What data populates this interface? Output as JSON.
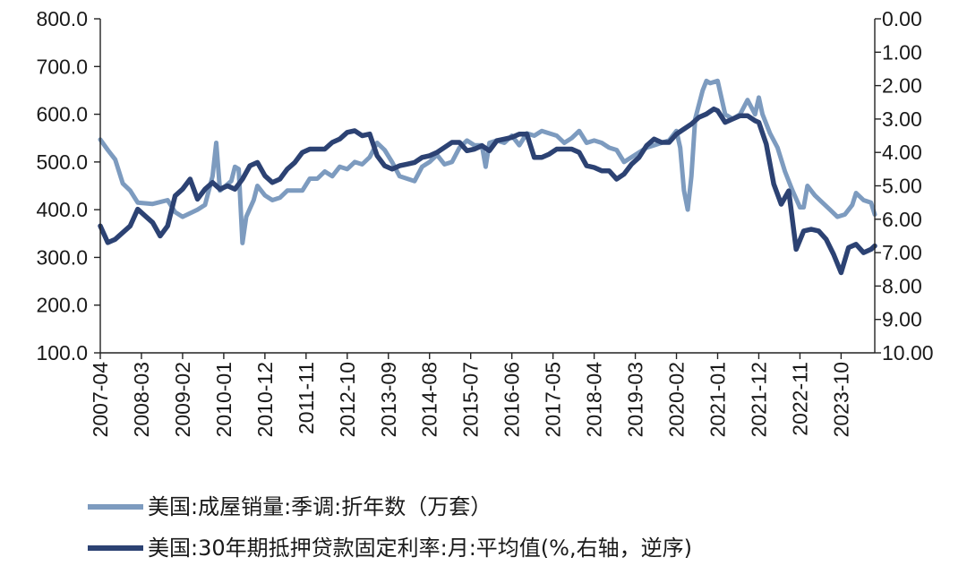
{
  "chart_data": {
    "type": "line",
    "title": "",
    "xlabel": "",
    "y_left": {
      "ylim": [
        100,
        800
      ],
      "ticks": [
        "800.0",
        "700.0",
        "600.0",
        "500.0",
        "400.0",
        "300.0",
        "200.0",
        "100.0"
      ]
    },
    "y_right": {
      "ylim": [
        0,
        10
      ],
      "reversed": true,
      "ticks": [
        "0.00",
        "1.00",
        "2.00",
        "3.00",
        "4.00",
        "5.00",
        "6.00",
        "7.00",
        "8.00",
        "9.00",
        "10.00"
      ]
    },
    "x_start": "2007-04",
    "x_end": "2024-07",
    "x_tick_labels": [
      "2007-04",
      "2008-03",
      "2009-02",
      "2010-01",
      "2010-12",
      "2011-11",
      "2012-10",
      "2013-09",
      "2014-08",
      "2015-07",
      "2016-06",
      "2017-05",
      "2018-04",
      "2019-03",
      "2020-02",
      "2021-01",
      "2021-12",
      "2022-11",
      "2023-10"
    ],
    "grid": false,
    "legend_position": "bottom",
    "colors": {
      "sales": "#7d9bbf",
      "rate": "#2c4273"
    },
    "series": [
      {
        "name": "美国:成屋销量:季调:折年数（万套）",
        "axis": "left",
        "points": [
          [
            "2007-04",
            547
          ],
          [
            "2007-06",
            525
          ],
          [
            "2007-08",
            505
          ],
          [
            "2007-10",
            455
          ],
          [
            "2007-12",
            440
          ],
          [
            "2008-02",
            415
          ],
          [
            "2008-06",
            412
          ],
          [
            "2008-10",
            420
          ],
          [
            "2008-12",
            395
          ],
          [
            "2009-02",
            385
          ],
          [
            "2009-06",
            400
          ],
          [
            "2009-08",
            410
          ],
          [
            "2009-10",
            470
          ],
          [
            "2009-11",
            540
          ],
          [
            "2009-12",
            440
          ],
          [
            "2010-03",
            460
          ],
          [
            "2010-04",
            490
          ],
          [
            "2010-05",
            485
          ],
          [
            "2010-06",
            330
          ],
          [
            "2010-07",
            385
          ],
          [
            "2010-09",
            420
          ],
          [
            "2010-10",
            450
          ],
          [
            "2010-12",
            430
          ],
          [
            "2011-02",
            420
          ],
          [
            "2011-04",
            425
          ],
          [
            "2011-06",
            440
          ],
          [
            "2011-10",
            440
          ],
          [
            "2011-12",
            465
          ],
          [
            "2012-02",
            465
          ],
          [
            "2012-04",
            480
          ],
          [
            "2012-06",
            470
          ],
          [
            "2012-08",
            490
          ],
          [
            "2012-10",
            485
          ],
          [
            "2012-12",
            500
          ],
          [
            "2013-02",
            495
          ],
          [
            "2013-04",
            510
          ],
          [
            "2013-06",
            540
          ],
          [
            "2013-08",
            525
          ],
          [
            "2013-10",
            500
          ],
          [
            "2013-12",
            470
          ],
          [
            "2014-04",
            460
          ],
          [
            "2014-06",
            490
          ],
          [
            "2014-08",
            500
          ],
          [
            "2014-10",
            515
          ],
          [
            "2014-12",
            495
          ],
          [
            "2015-02",
            500
          ],
          [
            "2015-04",
            530
          ],
          [
            "2015-06",
            545
          ],
          [
            "2015-08",
            535
          ],
          [
            "2015-10",
            535
          ],
          [
            "2015-11",
            490
          ],
          [
            "2015-12",
            540
          ],
          [
            "2016-02",
            545
          ],
          [
            "2016-04",
            540
          ],
          [
            "2016-06",
            555
          ],
          [
            "2016-08",
            535
          ],
          [
            "2016-10",
            560
          ],
          [
            "2016-12",
            555
          ],
          [
            "2017-02",
            565
          ],
          [
            "2017-04",
            560
          ],
          [
            "2017-06",
            555
          ],
          [
            "2017-08",
            540
          ],
          [
            "2017-10",
            550
          ],
          [
            "2017-12",
            565
          ],
          [
            "2018-02",
            540
          ],
          [
            "2018-04",
            545
          ],
          [
            "2018-06",
            540
          ],
          [
            "2018-08",
            530
          ],
          [
            "2018-10",
            525
          ],
          [
            "2018-12",
            500
          ],
          [
            "2019-02",
            510
          ],
          [
            "2019-04",
            520
          ],
          [
            "2019-06",
            530
          ],
          [
            "2019-08",
            535
          ],
          [
            "2019-10",
            540
          ],
          [
            "2019-12",
            545
          ],
          [
            "2020-02",
            565
          ],
          [
            "2020-03",
            530
          ],
          [
            "2020-04",
            440
          ],
          [
            "2020-05",
            400
          ],
          [
            "2020-06",
            470
          ],
          [
            "2020-07",
            590
          ],
          [
            "2020-09",
            650
          ],
          [
            "2020-10",
            670
          ],
          [
            "2020-11",
            665
          ],
          [
            "2021-01",
            670
          ],
          [
            "2021-03",
            600
          ],
          [
            "2021-05",
            590
          ],
          [
            "2021-07",
            600
          ],
          [
            "2021-09",
            630
          ],
          [
            "2021-11",
            600
          ],
          [
            "2021-12",
            635
          ],
          [
            "2022-01",
            600
          ],
          [
            "2022-03",
            560
          ],
          [
            "2022-05",
            530
          ],
          [
            "2022-07",
            480
          ],
          [
            "2022-09",
            440
          ],
          [
            "2022-11",
            405
          ],
          [
            "2022-12",
            405
          ],
          [
            "2023-01",
            450
          ],
          [
            "2023-03",
            430
          ],
          [
            "2023-05",
            415
          ],
          [
            "2023-07",
            400
          ],
          [
            "2023-09",
            385
          ],
          [
            "2023-11",
            390
          ],
          [
            "2024-01",
            410
          ],
          [
            "2024-02",
            435
          ],
          [
            "2024-04",
            420
          ],
          [
            "2024-06",
            415
          ],
          [
            "2024-07",
            390
          ]
        ]
      },
      {
        "name": "美国:30年期抵押贷款固定利率:月:平均值(%,右轴，逆序)",
        "axis": "right",
        "points": [
          [
            "2007-04",
            6.2
          ],
          [
            "2007-06",
            6.7
          ],
          [
            "2007-08",
            6.6
          ],
          [
            "2007-10",
            6.4
          ],
          [
            "2007-12",
            6.2
          ],
          [
            "2008-02",
            5.7
          ],
          [
            "2008-04",
            5.9
          ],
          [
            "2008-06",
            6.1
          ],
          [
            "2008-08",
            6.5
          ],
          [
            "2008-10",
            6.2
          ],
          [
            "2008-12",
            5.3
          ],
          [
            "2009-02",
            5.1
          ],
          [
            "2009-04",
            4.8
          ],
          [
            "2009-06",
            5.4
          ],
          [
            "2009-08",
            5.1
          ],
          [
            "2009-10",
            4.9
          ],
          [
            "2009-12",
            5.1
          ],
          [
            "2010-02",
            5.0
          ],
          [
            "2010-04",
            5.1
          ],
          [
            "2010-06",
            4.8
          ],
          [
            "2010-08",
            4.4
          ],
          [
            "2010-10",
            4.3
          ],
          [
            "2010-12",
            4.7
          ],
          [
            "2011-02",
            4.9
          ],
          [
            "2011-04",
            4.8
          ],
          [
            "2011-06",
            4.5
          ],
          [
            "2011-08",
            4.3
          ],
          [
            "2011-10",
            4.0
          ],
          [
            "2011-12",
            3.9
          ],
          [
            "2012-02",
            3.9
          ],
          [
            "2012-04",
            3.9
          ],
          [
            "2012-06",
            3.7
          ],
          [
            "2012-08",
            3.6
          ],
          [
            "2012-10",
            3.4
          ],
          [
            "2012-12",
            3.35
          ],
          [
            "2013-02",
            3.5
          ],
          [
            "2013-04",
            3.45
          ],
          [
            "2013-06",
            4.1
          ],
          [
            "2013-08",
            4.4
          ],
          [
            "2013-10",
            4.5
          ],
          [
            "2013-12",
            4.4
          ],
          [
            "2014-02",
            4.35
          ],
          [
            "2014-04",
            4.3
          ],
          [
            "2014-06",
            4.15
          ],
          [
            "2014-08",
            4.1
          ],
          [
            "2014-10",
            4.0
          ],
          [
            "2014-12",
            3.85
          ],
          [
            "2015-02",
            3.7
          ],
          [
            "2015-04",
            3.7
          ],
          [
            "2015-06",
            3.95
          ],
          [
            "2015-08",
            3.9
          ],
          [
            "2015-10",
            3.8
          ],
          [
            "2015-12",
            3.95
          ],
          [
            "2016-02",
            3.65
          ],
          [
            "2016-04",
            3.6
          ],
          [
            "2016-06",
            3.55
          ],
          [
            "2016-08",
            3.45
          ],
          [
            "2016-10",
            3.45
          ],
          [
            "2016-12",
            4.15
          ],
          [
            "2017-02",
            4.15
          ],
          [
            "2017-04",
            4.05
          ],
          [
            "2017-06",
            3.9
          ],
          [
            "2017-08",
            3.9
          ],
          [
            "2017-10",
            3.9
          ],
          [
            "2017-12",
            4.0
          ],
          [
            "2018-02",
            4.4
          ],
          [
            "2018-04",
            4.45
          ],
          [
            "2018-06",
            4.55
          ],
          [
            "2018-08",
            4.55
          ],
          [
            "2018-10",
            4.8
          ],
          [
            "2018-12",
            4.65
          ],
          [
            "2019-02",
            4.35
          ],
          [
            "2019-04",
            4.15
          ],
          [
            "2019-06",
            3.8
          ],
          [
            "2019-08",
            3.6
          ],
          [
            "2019-10",
            3.7
          ],
          [
            "2019-12",
            3.7
          ],
          [
            "2020-02",
            3.45
          ],
          [
            "2020-04",
            3.3
          ],
          [
            "2020-06",
            3.15
          ],
          [
            "2020-08",
            2.95
          ],
          [
            "2020-10",
            2.85
          ],
          [
            "2020-12",
            2.7
          ],
          [
            "2021-01",
            2.75
          ],
          [
            "2021-03",
            3.1
          ],
          [
            "2021-05",
            3.0
          ],
          [
            "2021-07",
            2.9
          ],
          [
            "2021-09",
            2.9
          ],
          [
            "2021-11",
            3.05
          ],
          [
            "2021-12",
            3.1
          ],
          [
            "2022-02",
            3.75
          ],
          [
            "2022-04",
            4.95
          ],
          [
            "2022-06",
            5.55
          ],
          [
            "2022-08",
            5.15
          ],
          [
            "2022-10",
            6.9
          ],
          [
            "2022-12",
            6.35
          ],
          [
            "2023-02",
            6.3
          ],
          [
            "2023-04",
            6.35
          ],
          [
            "2023-06",
            6.6
          ],
          [
            "2023-08",
            7.05
          ],
          [
            "2023-10",
            7.6
          ],
          [
            "2023-12",
            6.85
          ],
          [
            "2024-02",
            6.75
          ],
          [
            "2024-04",
            7.0
          ],
          [
            "2024-06",
            6.9
          ],
          [
            "2024-07",
            6.8
          ]
        ]
      }
    ]
  }
}
